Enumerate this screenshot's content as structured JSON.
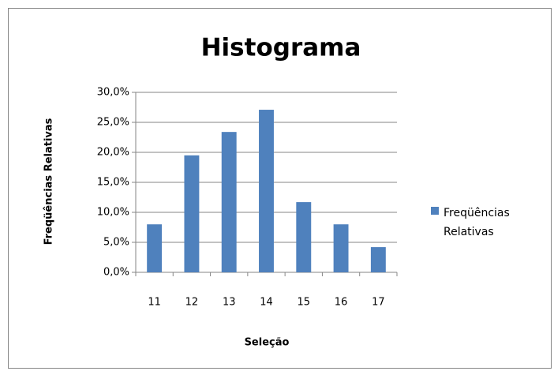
{
  "chart_data": {
    "type": "bar",
    "title": "Histograma",
    "x_label": "Seleção",
    "y_label": "Freqüências Relativas",
    "categories": [
      "11",
      "12",
      "13",
      "14",
      "15",
      "16",
      "17"
    ],
    "series": [
      {
        "name": "Freqüências Relativas",
        "color": "#4f81bd",
        "values": [
          8.0,
          19.5,
          23.4,
          27.1,
          11.7,
          8.0,
          4.2
        ]
      }
    ],
    "ylim": [
      0,
      30
    ],
    "yticks": [
      {
        "value": 0,
        "label": "0,0%"
      },
      {
        "value": 5,
        "label": "5,0%"
      },
      {
        "value": 10,
        "label": "10,0%"
      },
      {
        "value": 15,
        "label": "15,0%"
      },
      {
        "value": 20,
        "label": "20,0%"
      },
      {
        "value": 25,
        "label": "25,0%"
      },
      {
        "value": 30,
        "label": "30,0%"
      }
    ],
    "grid": true,
    "legend": "right"
  }
}
